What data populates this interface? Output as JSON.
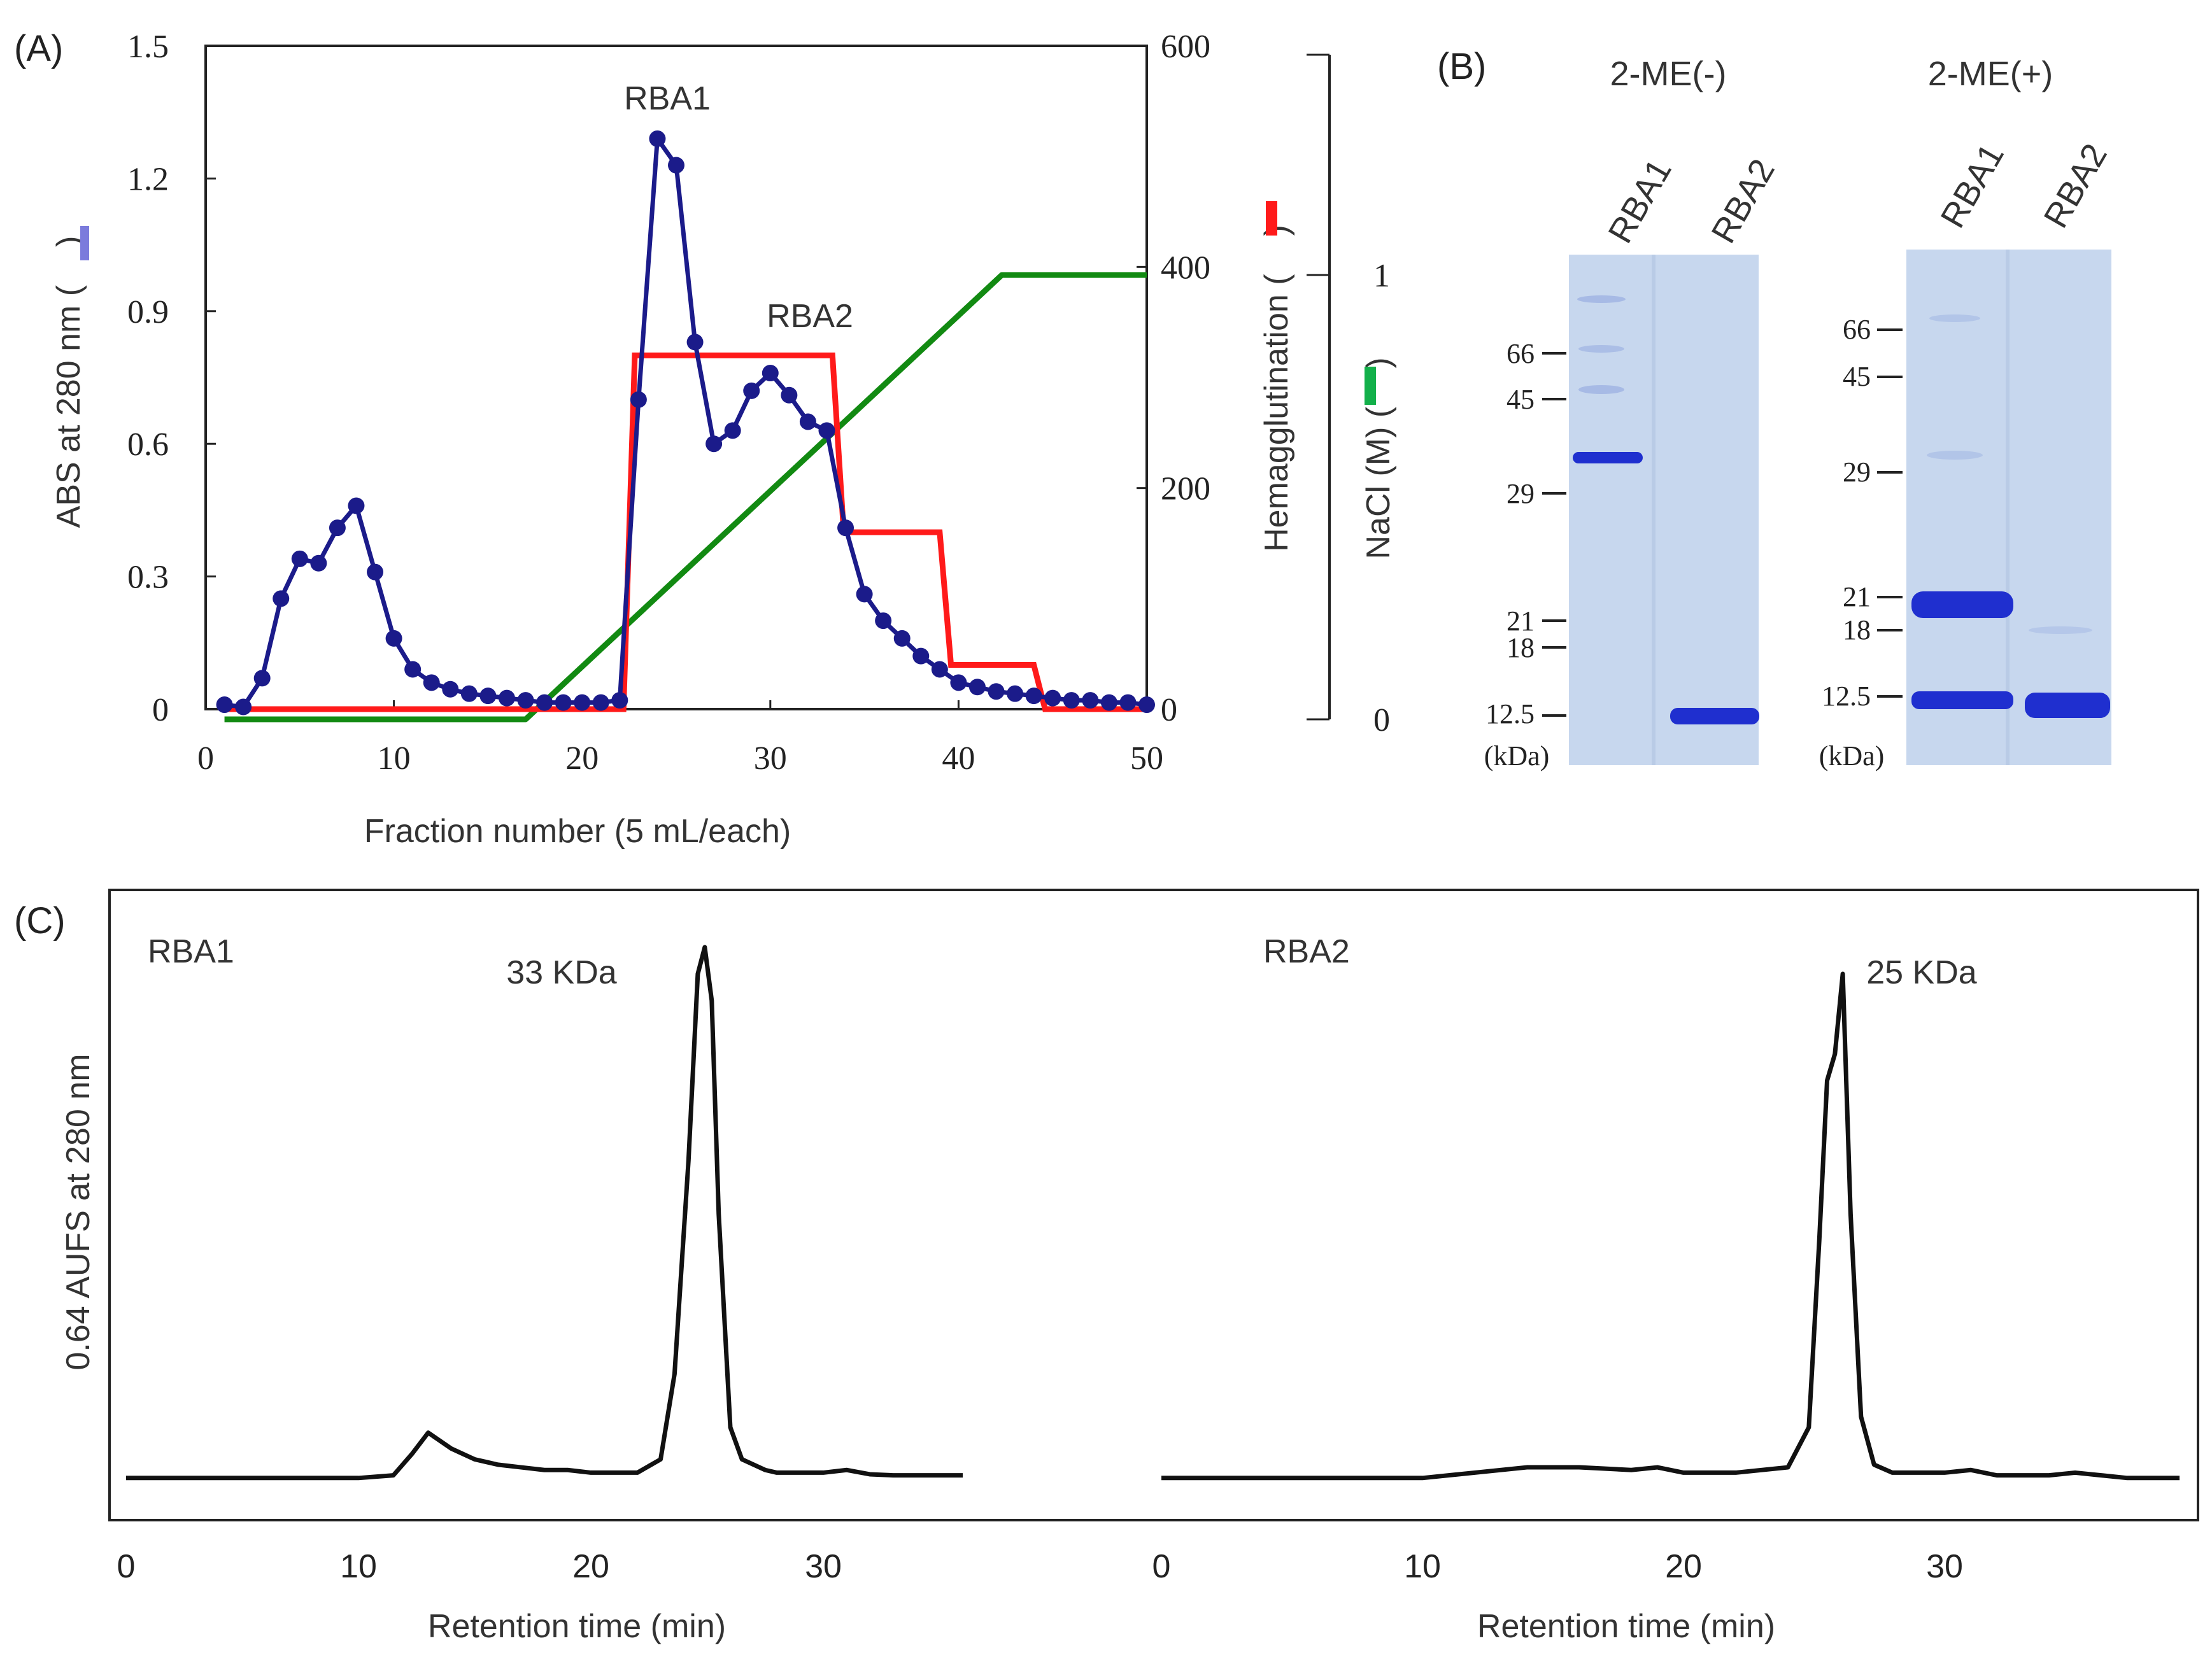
{
  "colors": {
    "abs": "#1b1b8a",
    "hemagglutination": "#ff1a1a",
    "nacl": "#128a12",
    "abs_key": "#7b7bdc",
    "nacl_key": "#13b04a",
    "gel_bg": "#c7d7ee",
    "band": "#1f2fcf",
    "trace": "#111111"
  },
  "panelA": {
    "label": "(A)",
    "peak1": "RBA1",
    "peak2": "RBA2",
    "yleft_label": "ABS at 280 nm (",
    "yleft_close": ")",
    "yright1_label": "Hemagglutination (",
    "yright1_close": ")",
    "yright2_label": "NaCl (M) (",
    "yright2_close": ")",
    "x_ticks": [
      "0",
      "10",
      "20",
      "30",
      "40",
      "50"
    ],
    "yleft_ticks": [
      "0",
      "0.3",
      "0.6",
      "0.9",
      "1.2",
      "1.5"
    ],
    "yright1_ticks": [
      "0",
      "200",
      "400",
      "600"
    ],
    "yright2_ticks": [
      "0",
      "1"
    ]
  },
  "panelB": {
    "label": "(B)",
    "gel1": {
      "condition": "2-ME(-)",
      "lanes": [
        "RBA1",
        "RBA2"
      ],
      "markers": [
        "66",
        "45",
        "29",
        "21",
        "18",
        "12.5"
      ],
      "unit": "(kDa)"
    },
    "gel2": {
      "condition": "2-ME(+)",
      "lanes": [
        "RBA1",
        "RBA2"
      ],
      "markers": [
        "66",
        "45",
        "29",
        "21",
        "18",
        "12.5"
      ],
      "unit": "(kDa)"
    }
  },
  "panelC": {
    "label": "(C)",
    "ylabel": "0.64 AUFS at 280 nm",
    "left": {
      "sample": "RBA1",
      "peak_label": "33 KDa",
      "xlabel": "Retention time (min)",
      "x_ticks": [
        "0",
        "10",
        "20",
        "30"
      ]
    },
    "right": {
      "sample": "RBA2",
      "peak_label": "25 KDa",
      "xlabel": "Retention time (min)",
      "x_ticks": [
        "0",
        "10",
        "20",
        "30"
      ]
    }
  },
  "chart_data": [
    {
      "type": "line",
      "panel": "A",
      "xlabel": "Fraction number (5 mL/each)",
      "xlim": [
        0,
        50
      ],
      "ylim_left": [
        0,
        1.5
      ],
      "ylim_right_hemagglutination": [
        0,
        600
      ],
      "ylim_right_nacl": [
        0,
        1.3
      ],
      "series": [
        {
          "name": "ABS at 280 nm",
          "axis": "left",
          "marker": "circle",
          "x": [
            1,
            2,
            3,
            4,
            5,
            6,
            7,
            8,
            9,
            10,
            11,
            12,
            13,
            14,
            15,
            16,
            17,
            18,
            19,
            20,
            21,
            22,
            23,
            24,
            25,
            26,
            27,
            28,
            29,
            30,
            31,
            32,
            33,
            34,
            35,
            36,
            37,
            38,
            39,
            40,
            41,
            42,
            43,
            44,
            45,
            46,
            47,
            48,
            49,
            50
          ],
          "y": [
            0.01,
            0.005,
            0.07,
            0.25,
            0.34,
            0.33,
            0.41,
            0.46,
            0.31,
            0.16,
            0.09,
            0.06,
            0.045,
            0.035,
            0.03,
            0.025,
            0.02,
            0.015,
            0.015,
            0.015,
            0.015,
            0.02,
            0.7,
            1.29,
            1.23,
            0.83,
            0.6,
            0.63,
            0.72,
            0.76,
            0.71,
            0.65,
            0.63,
            0.41,
            0.26,
            0.2,
            0.16,
            0.12,
            0.09,
            0.06,
            0.05,
            0.04,
            0.035,
            0.03,
            0.025,
            0.02,
            0.02,
            0.015,
            0.015,
            0.01
          ]
        },
        {
          "name": "Hemagglutination",
          "axis": "right1",
          "x": [
            1,
            22.2,
            22.8,
            33.3,
            33.9,
            39,
            39.6,
            44,
            44.6,
            50
          ],
          "y": [
            0,
            0,
            320,
            320,
            160,
            160,
            40,
            40,
            0,
            0
          ]
        },
        {
          "name": "NaCl (M)",
          "axis": "right2",
          "x": [
            1,
            17,
            42.3,
            50
          ],
          "y": [
            0,
            0,
            1,
            1
          ]
        }
      ]
    },
    {
      "type": "line",
      "panel": "C-left",
      "sample": "RBA1",
      "xlabel": "Retention time (min)",
      "xlim": [
        0,
        36
      ],
      "series": [
        {
          "name": "RBA1",
          "x": [
            0,
            10,
            11.5,
            12.3,
            13,
            14,
            15,
            16,
            17,
            18,
            19,
            20,
            22,
            23,
            23.6,
            24.2,
            24.6,
            24.9,
            25.2,
            25.5,
            26,
            26.5,
            27,
            27.5,
            28,
            30,
            31,
            32,
            33,
            36
          ],
          "y": [
            0.005,
            0.005,
            0.01,
            0.05,
            0.09,
            0.06,
            0.04,
            0.03,
            0.025,
            0.02,
            0.02,
            0.015,
            0.015,
            0.04,
            0.2,
            0.6,
            0.95,
            1.0,
            0.9,
            0.5,
            0.1,
            0.04,
            0.03,
            0.02,
            0.015,
            0.015,
            0.02,
            0.012,
            0.01,
            0.01
          ]
        }
      ]
    },
    {
      "type": "line",
      "panel": "C-right",
      "sample": "RBA2",
      "xlabel": "Retention time (min)",
      "xlim": [
        0,
        39
      ],
      "series": [
        {
          "name": "RBA2",
          "x": [
            0,
            5,
            10,
            12,
            14,
            16,
            18,
            19,
            20,
            22,
            24,
            24.8,
            25.2,
            25.5,
            25.8,
            26.1,
            26.4,
            26.8,
            27.3,
            28,
            30,
            31,
            32,
            34,
            35,
            37,
            39
          ],
          "y": [
            0.005,
            0.005,
            0.005,
            0.015,
            0.025,
            0.025,
            0.02,
            0.025,
            0.015,
            0.015,
            0.025,
            0.1,
            0.45,
            0.75,
            0.8,
            0.95,
            0.5,
            0.12,
            0.03,
            0.015,
            0.015,
            0.02,
            0.01,
            0.01,
            0.015,
            0.005,
            0.005
          ]
        }
      ]
    }
  ]
}
